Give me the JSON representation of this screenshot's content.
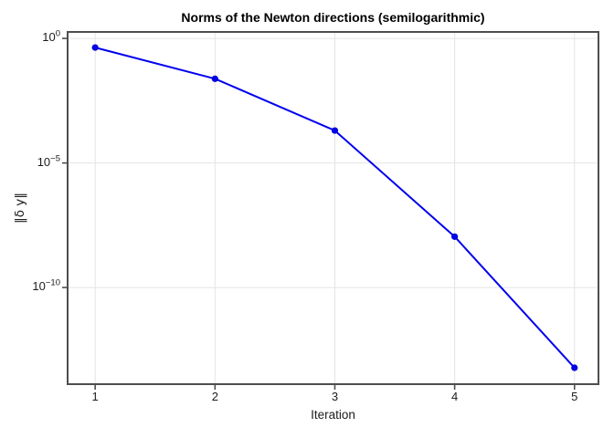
{
  "chart_data": {
    "type": "line",
    "scale": "semilog-y",
    "title": "Norms of the Newton directions (semilogarithmic)",
    "xlabel": "Iteration",
    "ylabel": "‖δ y‖",
    "x": [
      1,
      2,
      3,
      4,
      5
    ],
    "y": [
      0.43,
      0.024,
      0.0002,
      1.1e-08,
      6e-14
    ],
    "xticks": [
      {
        "value": 1,
        "label": "1"
      },
      {
        "value": 2,
        "label": "2"
      },
      {
        "value": 3,
        "label": "3"
      },
      {
        "value": 4,
        "label": "4"
      },
      {
        "value": 5,
        "label": "5"
      }
    ],
    "yticks": [
      {
        "base": "10",
        "exp": "0",
        "log10": 0
      },
      {
        "base": "10",
        "exp": "−5",
        "log10": -5
      },
      {
        "base": "10",
        "exp": "−10",
        "log10": -10
      }
    ],
    "x_range": [
      0.77,
      5.2
    ],
    "y_log_range": [
      -13.88,
      0.26
    ],
    "grid": true,
    "legend": "none",
    "marker": "circle",
    "colors": {
      "series": "#0000EE",
      "marker_edge": "#0000C8",
      "grid": "#E4E4E4",
      "frame": "#4E4E4E",
      "tick_label": "#1C1C1C",
      "background": "#FFFFFF"
    }
  }
}
